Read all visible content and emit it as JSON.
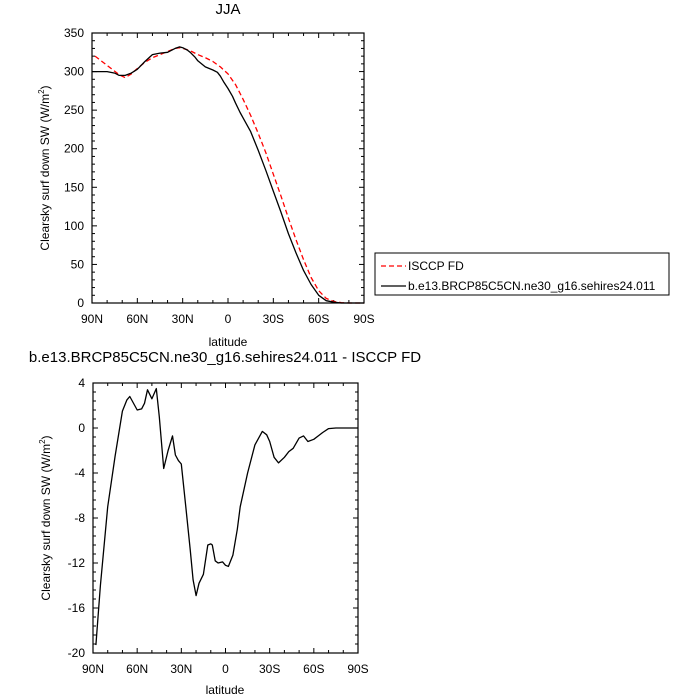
{
  "chart_data": [
    {
      "type": "line",
      "title": "JJA",
      "xlabel": "latitude",
      "ylabel": "Clearsky surf down SW (W/m",
      "ylabel_sup": "2",
      "ylabel_close": ")",
      "xlim": [
        90,
        -90
      ],
      "ylim": [
        0,
        350
      ],
      "xticks": [
        90,
        60,
        30,
        0,
        -30,
        -60,
        -90
      ],
      "xtick_labels": [
        "90N",
        "60N",
        "30N",
        "0",
        "30S",
        "60S",
        "90S"
      ],
      "yticks": [
        0,
        50,
        100,
        150,
        200,
        250,
        300,
        350
      ],
      "ytick_labels": [
        "0",
        "50",
        "100",
        "150",
        "200",
        "250",
        "300",
        "350"
      ],
      "legend_position": "outside-right",
      "series": [
        {
          "name": "ISCCP FD",
          "color": "#ff0000",
          "dash": "dashed",
          "x": [
            88,
            80,
            72,
            68,
            64,
            60,
            55,
            50,
            45,
            40,
            35,
            32,
            28,
            24,
            20,
            15,
            10,
            5,
            0,
            -5,
            -10,
            -15,
            -20,
            -25,
            -30,
            -35,
            -40,
            -45,
            -50,
            -55,
            -60,
            -65,
            -70,
            -75,
            -80,
            -85,
            -90
          ],
          "y": [
            320,
            308,
            296,
            292,
            297,
            304,
            312,
            318,
            322,
            326,
            330,
            331,
            329,
            326,
            322,
            318,
            313,
            306,
            297,
            283,
            264,
            243,
            220,
            195,
            167,
            139,
            110,
            82,
            56,
            33,
            16,
            6,
            2,
            0.5,
            0,
            0,
            0
          ]
        },
        {
          "name": "b.e13.BRCP85C5CN.ne30_g16.sehires24.011",
          "color": "#000000",
          "dash": "solid",
          "x": [
            90,
            83,
            80,
            75,
            72,
            68,
            64,
            60,
            55,
            50,
            45,
            40,
            35,
            32,
            30,
            27,
            25,
            22,
            20,
            15,
            10,
            7,
            5,
            3,
            0,
            -3,
            -5,
            -8,
            -10,
            -15,
            -20,
            -25,
            -30,
            -35,
            -40,
            -45,
            -50,
            -55,
            -60,
            -65,
            -70,
            -75,
            -80,
            -85,
            -90
          ],
          "y": [
            300,
            300,
            300,
            298,
            295,
            295,
            298,
            303,
            313,
            322,
            324,
            325,
            330,
            332,
            331,
            328,
            325,
            319,
            314,
            306,
            302,
            299,
            294,
            287,
            278,
            268,
            259,
            247,
            240,
            222,
            198,
            172,
            145,
            118,
            90,
            65,
            42,
            24,
            10,
            3,
            1,
            0,
            0,
            0,
            0
          ]
        }
      ]
    },
    {
      "type": "line",
      "title": "b.e13.BRCP85C5CN.ne30_g16.sehires24.011 - ISCCP FD",
      "xlabel": "latitude",
      "ylabel": "Clearsky surf down SW (W/m",
      "ylabel_sup": "2",
      "ylabel_close": ")",
      "xlim": [
        90,
        -90
      ],
      "ylim": [
        -20,
        4
      ],
      "xticks": [
        90,
        60,
        30,
        0,
        -30,
        -60,
        -90
      ],
      "xtick_labels": [
        "90N",
        "60N",
        "30N",
        "0",
        "30S",
        "60S",
        "90S"
      ],
      "yticks": [
        -20,
        -16,
        -12,
        -8,
        -4,
        0,
        4
      ],
      "ytick_labels": [
        "-20",
        "-16",
        "-12",
        "-8",
        "-4",
        "0",
        "4"
      ],
      "series": [
        {
          "color": "#000000",
          "dash": "solid",
          "x": [
            88,
            85,
            80,
            75,
            70,
            67,
            65,
            60,
            57,
            55,
            53,
            50,
            47,
            45,
            42,
            39,
            36,
            34,
            32,
            30,
            27,
            24,
            22,
            20,
            18,
            15,
            12,
            10,
            9,
            7,
            5,
            2,
            0,
            -2,
            -5,
            -8,
            -10,
            -15,
            -20,
            -25,
            -28,
            -30,
            -33,
            -36,
            -40,
            -43,
            -46,
            -50,
            -53,
            -56,
            -60,
            -63,
            -66,
            -70,
            -75,
            -80,
            -85,
            -90
          ],
          "y": [
            -19.3,
            -14,
            -7,
            -2.5,
            1.5,
            2.5,
            2.8,
            1.6,
            1.7,
            2.2,
            3.4,
            2.6,
            3.5,
            1,
            -3.6,
            -2,
            -0.7,
            -2.4,
            -2.9,
            -3.2,
            -7,
            -10.8,
            -13.5,
            -14.9,
            -13.8,
            -13,
            -10.4,
            -10.3,
            -10.4,
            -11.8,
            -12,
            -11.9,
            -12.2,
            -12.3,
            -11.3,
            -9,
            -7,
            -4,
            -1.5,
            -0.3,
            -0.6,
            -1.2,
            -2.6,
            -3.1,
            -2.6,
            -2.1,
            -1.8,
            -0.9,
            -0.7,
            -1.2,
            -1.0,
            -0.7,
            -0.4,
            -0.05,
            0,
            0,
            0,
            0
          ]
        }
      ]
    }
  ]
}
